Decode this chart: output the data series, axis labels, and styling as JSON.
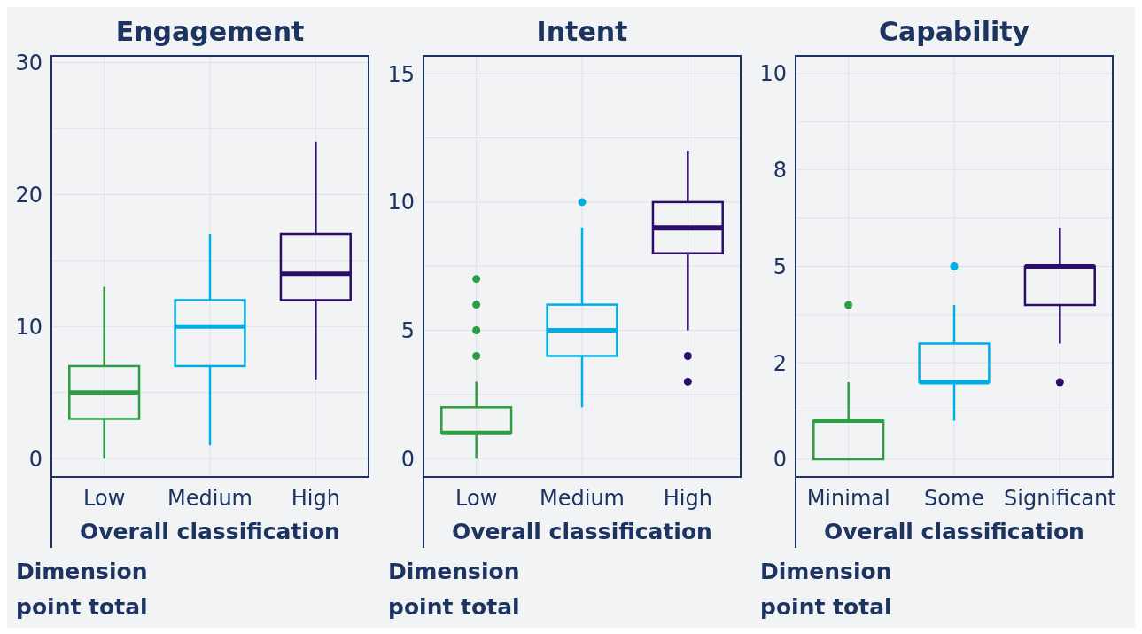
{
  "chart_data": [
    {
      "type": "box",
      "title": "Engagement",
      "xlabel": "Overall classification",
      "ylabel": "Dimension point total",
      "categories": [
        "Low",
        "Medium",
        "High"
      ],
      "colors": [
        "#2e9e44",
        "#00aee6",
        "#2c0d6b"
      ],
      "boxes": [
        {
          "low": 0,
          "q1": 3,
          "median": 5,
          "q3": 7,
          "high": 13
        },
        {
          "low": 1,
          "q1": 7,
          "median": 10,
          "q3": 12,
          "high": 17
        },
        {
          "low": 6,
          "q1": 12,
          "median": 14,
          "q3": 17,
          "high": 24
        }
      ],
      "ylim": [
        -1.4,
        30.5
      ],
      "yticks": [
        0,
        {
          "value": 5,
          "label": null
        },
        10,
        {
          "value": 15,
          "label": null
        },
        20,
        {
          "value": 25,
          "label": null
        },
        30
      ],
      "grid": true
    },
    {
      "type": "box",
      "title": "Intent",
      "xlabel": "Overall classification",
      "ylabel": "Dimension point total",
      "categories": [
        "Low",
        "Medium",
        "High"
      ],
      "colors": [
        "#2e9e44",
        "#00aee6",
        "#2c0d6b"
      ],
      "boxes": [
        {
          "low": 0,
          "q1": 1,
          "median": 1,
          "q3": 2,
          "high": 3,
          "outliers": [
            4,
            5,
            6,
            7
          ]
        },
        {
          "low": 2,
          "q1": 4,
          "median": 5,
          "q3": 6,
          "high": 9,
          "outliers": [
            10
          ]
        },
        {
          "low": 5,
          "q1": 8,
          "median": 9,
          "q3": 10,
          "high": 12,
          "outliers": [
            4,
            3
          ]
        }
      ],
      "ylim": [
        -0.72,
        15.7
      ],
      "yticks": [
        0,
        {
          "value": 2.5,
          "label": null
        },
        5,
        {
          "value": 7.5,
          "label": null
        },
        10,
        {
          "value": 12.5,
          "label": null
        },
        15
      ],
      "grid": true
    },
    {
      "type": "box",
      "title": "Capability",
      "xlabel": "Overall classification",
      "ylabel": "Dimension point total",
      "categories": [
        "Minimal",
        "Some",
        "Significant"
      ],
      "colors": [
        "#2e9e44",
        "#00aee6",
        "#2c0d6b"
      ],
      "boxes": [
        {
          "low": 0,
          "q1": 0,
          "median": 1,
          "q3": 1,
          "high": 2,
          "outliers": [
            4
          ]
        },
        {
          "low": 1,
          "q1": 2,
          "median": 2,
          "q3": 3,
          "high": 4,
          "outliers": [
            5
          ]
        },
        {
          "low": 3,
          "q1": 4,
          "median": 5,
          "q3": 5,
          "high": 6,
          "outliers": [
            2
          ]
        }
      ],
      "ylim": [
        -0.46,
        10.46
      ],
      "yticks": [
        0,
        {
          "value": 1.25,
          "label": null
        },
        {
          "value": 2.5,
          "label": "2"
        },
        {
          "value": 3.75,
          "label": null
        },
        5,
        {
          "value": 6.25,
          "label": null
        },
        {
          "value": 7.5,
          "label": "8"
        },
        {
          "value": 8.75,
          "label": null
        },
        10
      ],
      "grid": true
    }
  ]
}
